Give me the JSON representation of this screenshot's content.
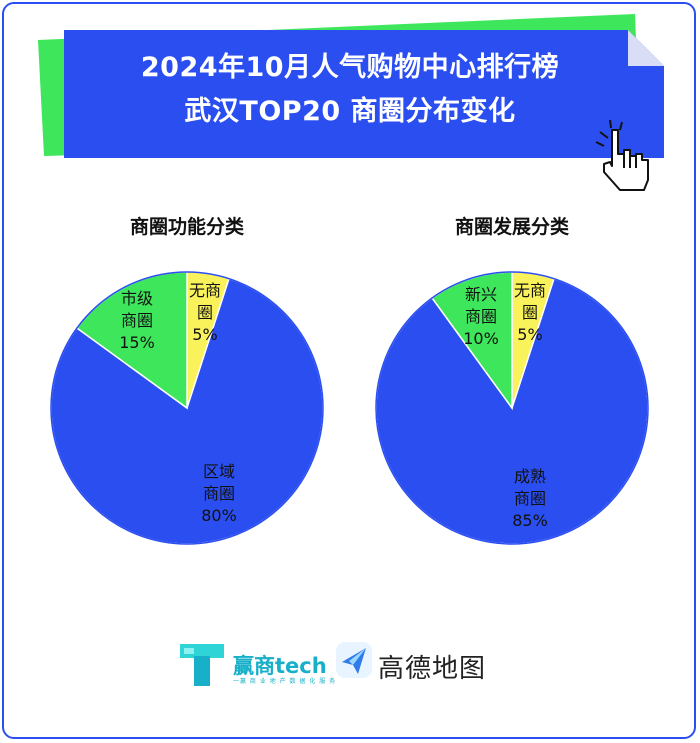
{
  "banner": {
    "title_line1": "2024年10月人气购物中心排行榜",
    "title_line2": "武汉TOP20 商圈分布变化"
  },
  "colors": {
    "blue": "#2b4ef0",
    "green": "#3ee65c",
    "yellow": "#faf25a",
    "outline": "#2b4ef0"
  },
  "chart_data": [
    {
      "type": "pie",
      "title": "商圈功能分类",
      "slices": [
        {
          "label": "无商圈",
          "value": 5,
          "color": "#faf25a",
          "text_lines": [
            "无商",
            "圈",
            "5%"
          ]
        },
        {
          "label": "区域商圈",
          "value": 80,
          "color": "#2b4ef0",
          "text_lines": [
            "区域",
            "商圈",
            "80%"
          ]
        },
        {
          "label": "市级商圈",
          "value": 15,
          "color": "#3ee65c",
          "text_lines": [
            "市级",
            "商圈",
            "15%"
          ]
        }
      ]
    },
    {
      "type": "pie",
      "title": "商圈发展分类",
      "slices": [
        {
          "label": "无商圈",
          "value": 5,
          "color": "#faf25a",
          "text_lines": [
            "无商",
            "圈",
            "5%"
          ]
        },
        {
          "label": "成熟商圈",
          "value": 85,
          "color": "#2b4ef0",
          "text_lines": [
            "成熟",
            "商圈",
            "85%"
          ]
        },
        {
          "label": "新兴商圈",
          "value": 10,
          "color": "#3ee65c",
          "text_lines": [
            "新兴",
            "商圈",
            "10%"
          ]
        }
      ]
    }
  ],
  "logos": {
    "brand1_name": "赢商tech",
    "brand1_tagline": "一赢 商 业 地 产 数 据 化 服 务",
    "brand2_name": "高德地图",
    "brand1_icon": "tech-t-logo-icon",
    "brand2_icon": "paper-plane-logo-icon"
  },
  "decor": {
    "cursor_icon": "hand-pointer-icon"
  }
}
